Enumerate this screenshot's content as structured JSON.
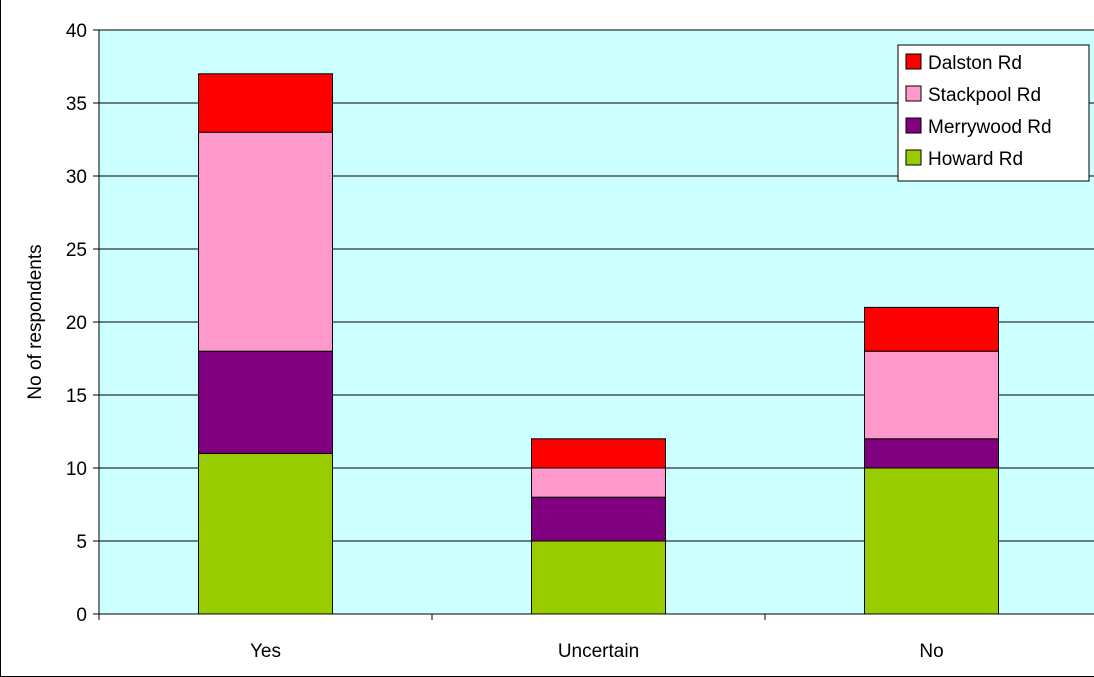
{
  "chart_data": {
    "type": "bar",
    "stacked": true,
    "categories": [
      "Yes",
      "Uncertain",
      "No"
    ],
    "series": [
      {
        "name": "Howard Rd",
        "color": "#99CC00",
        "values": [
          11,
          5,
          10
        ]
      },
      {
        "name": "Merrywood Rd",
        "color": "#800080",
        "values": [
          7,
          3,
          2
        ]
      },
      {
        "name": "Stackpool Rd",
        "color": "#FF99CC",
        "values": [
          15,
          2,
          6
        ]
      },
      {
        "name": "Dalston Rd",
        "color": "#FF0000",
        "values": [
          4,
          2,
          3
        ]
      }
    ],
    "title": "",
    "xlabel": "",
    "ylabel": "No of respondents",
    "ylim": [
      0,
      40
    ],
    "yticks": [
      0,
      5,
      10,
      15,
      20,
      25,
      30,
      35,
      40
    ],
    "grid": true,
    "legend_position": "top-right",
    "plot_background": "#CCFFFF"
  }
}
